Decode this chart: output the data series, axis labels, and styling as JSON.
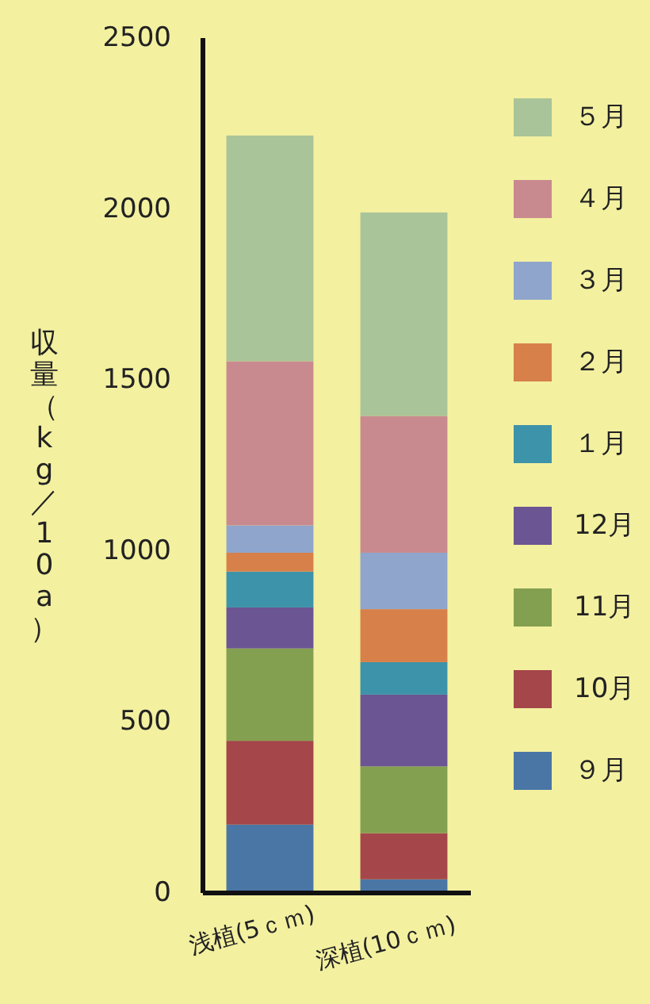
{
  "chart_data": {
    "type": "bar",
    "stacked": true,
    "ylabel": "収量（kg／10a）",
    "categories": [
      "浅植(5ｃｍ)",
      "深植(10ｃｍ)"
    ],
    "ylim": [
      0,
      2500
    ],
    "yticks": [
      0,
      500,
      1000,
      1500,
      2000,
      2500
    ],
    "legend": "right",
    "series": [
      {
        "name": "９月",
        "color": "#4a76a6",
        "values": [
          200,
          40
        ]
      },
      {
        "name": "10月",
        "color": "#a4464a",
        "values": [
          245,
          135
        ]
      },
      {
        "name": "11月",
        "color": "#83a050",
        "values": [
          270,
          195
        ]
      },
      {
        "name": "12月",
        "color": "#6b5593",
        "values": [
          120,
          210
        ]
      },
      {
        "name": "１月",
        "color": "#3d93a9",
        "values": [
          105,
          95
        ]
      },
      {
        "name": "２月",
        "color": "#d7804a",
        "values": [
          55,
          155
        ]
      },
      {
        "name": "３月",
        "color": "#8fa5cc",
        "values": [
          80,
          165
        ]
      },
      {
        "name": "４月",
        "color": "#c98a8f",
        "values": [
          480,
          400
        ]
      },
      {
        "name": "５月",
        "color": "#a9c498",
        "values": [
          660,
          595
        ]
      }
    ]
  }
}
